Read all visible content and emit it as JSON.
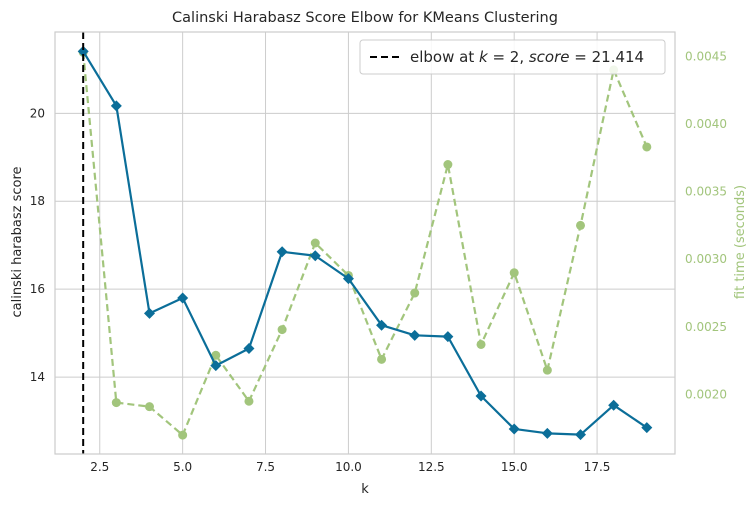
{
  "chart_data": {
    "type": "line",
    "title": "Calinski Harabasz Score Elbow for KMeans Clustering",
    "xlabel": "k",
    "ylabel": "calinski harabasz score",
    "y2label": "fit time (seconds)",
    "xlim": [
      1.15,
      19.85
    ],
    "ylim": [
      12.25,
      21.85
    ],
    "y2lim": [
      0.00156,
      0.00468
    ],
    "x_ticks": [
      2.5,
      5.0,
      7.5,
      10.0,
      12.5,
      15.0,
      17.5
    ],
    "x_tick_labels": [
      "2.5",
      "5.0",
      "7.5",
      "10.0",
      "12.5",
      "15.0",
      "17.5"
    ],
    "y_ticks": [
      14,
      16,
      18,
      20
    ],
    "y_tick_labels": [
      "14",
      "16",
      "18",
      "20"
    ],
    "y2_ticks": [
      0.002,
      0.0025,
      0.003,
      0.0035,
      0.004,
      0.0045
    ],
    "y2_tick_labels": [
      "0.0020",
      "0.0025",
      "0.0030",
      "0.0035",
      "0.0040",
      "0.0045"
    ],
    "grid": true,
    "legend_position": "top-right",
    "legend_label": "elbow at k = 2, score = 21.414",
    "legend_parts": {
      "prefix": "elbow at ",
      "k_var": "k",
      "k_eq": " = 2, ",
      "score_var": "score",
      "score_eq": " = 21.414"
    },
    "elbow": {
      "k": 2,
      "score": 21.414
    },
    "series": [
      {
        "name": "score",
        "axis": "left",
        "color": "#0b6e99",
        "marker": "diamond",
        "x": [
          2,
          3,
          4,
          5,
          6,
          7,
          8,
          9,
          10,
          11,
          12,
          13,
          14,
          15,
          16,
          17,
          18,
          19
        ],
        "values": [
          21.41,
          20.17,
          15.45,
          15.8,
          14.26,
          14.65,
          16.85,
          16.76,
          16.24,
          15.18,
          14.95,
          14.92,
          13.57,
          12.82,
          12.72,
          12.69,
          13.36,
          12.85
        ]
      },
      {
        "name": "fit time",
        "axis": "right",
        "color": "#a2c57c",
        "marker": "circle",
        "dashed": true,
        "x": [
          2,
          3,
          4,
          5,
          6,
          7,
          8,
          9,
          10,
          11,
          12,
          13,
          14,
          15,
          16,
          17,
          18,
          19
        ],
        "values": [
          0.00453,
          0.00194,
          0.00191,
          0.0017,
          0.00229,
          0.00195,
          0.00248,
          0.00312,
          0.00288,
          0.00226,
          0.00275,
          0.0037,
          0.00237,
          0.0029,
          0.00218,
          0.00325,
          0.0044,
          0.00383
        ]
      }
    ]
  },
  "colors": {
    "score": "#0b6e99",
    "fit_time": "#a2c57c",
    "grid": "#cccccc",
    "frame": "#cccccc",
    "elbow_line": "#000000"
  }
}
